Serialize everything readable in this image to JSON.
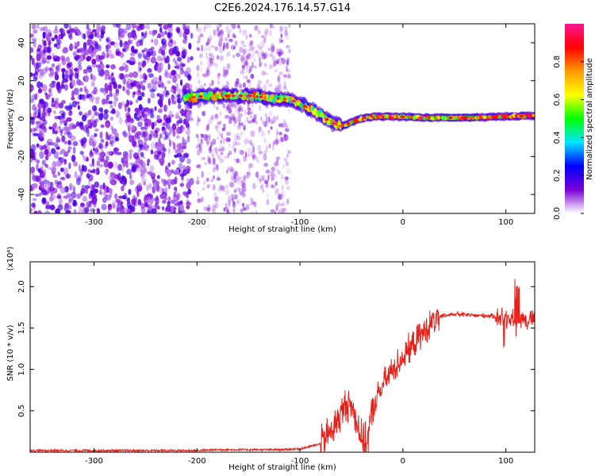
{
  "figure_title": "C2E6.2024.176.14.57.G14",
  "chart_data": [
    {
      "type": "heatmap",
      "title": "C2E6.2024.176.14.57.G14",
      "xlabel": "Height of straight line (km)",
      "ylabel": "Frequency (Hz)",
      "xlim": [
        -362,
        128
      ],
      "ylim": [
        -50,
        50
      ],
      "x_ticks": [
        -300,
        -200,
        -100,
        0,
        100
      ],
      "y_ticks": [
        -40,
        -20,
        0,
        20,
        40
      ],
      "colorbar": {
        "label": "Normalized spectral amplitude",
        "range": [
          0.0,
          1.0
        ],
        "ticks": [
          0.0,
          0.2,
          0.4,
          0.6,
          0.8
        ],
        "colormap": [
          "#ffffff",
          "#7a00d6",
          "#0000ff",
          "#00e5ff",
          "#00ff00",
          "#ffff00",
          "#ff9900",
          "#ff0000",
          "#ff1493"
        ]
      },
      "ridge": {
        "x": [
          -210,
          -190,
          -170,
          -150,
          -130,
          -110,
          -100,
          -90,
          -80,
          -70,
          -60,
          -50,
          -40,
          -30,
          -20,
          -10,
          0,
          20,
          40,
          60,
          80,
          100,
          128
        ],
        "y": [
          11,
          12,
          12,
          12,
          11,
          10,
          8,
          5,
          2,
          -2,
          -4,
          -2,
          0,
          1,
          1,
          1,
          1,
          0.5,
          0.5,
          0.5,
          0.7,
          1.2,
          1.5
        ]
      }
    },
    {
      "type": "line",
      "xlabel": "Height of straight line (km)",
      "ylabel": "SNR (10 * v/v)",
      "scale_label": "(x10⁴)",
      "xlim": [
        -362,
        128
      ],
      "ylim": [
        0,
        2.3
      ],
      "x_ticks": [
        -300,
        -200,
        -100,
        0,
        100
      ],
      "y_ticks": [
        0.5,
        1.0,
        1.5,
        2.0
      ],
      "series": [
        {
          "color": "#e8201a",
          "x": [
            -362,
            -300,
            -250,
            -200,
            -180,
            -150,
            -120,
            -100,
            -80,
            -70,
            -60,
            -55,
            -50,
            -45,
            -40,
            -35,
            -30,
            -20,
            -10,
            0,
            10,
            20,
            30,
            40,
            50,
            60,
            70,
            80,
            90,
            95,
            100,
            105,
            108,
            110,
            112,
            115,
            120,
            128
          ],
          "y": [
            0.02,
            0.02,
            0.02,
            0.02,
            0.03,
            0.03,
            0.03,
            0.04,
            0.1,
            0.25,
            0.45,
            0.6,
            0.55,
            0.4,
            0.15,
            0.1,
            0.5,
            0.8,
            1.0,
            1.15,
            1.3,
            1.45,
            1.58,
            1.65,
            1.67,
            1.66,
            1.65,
            1.65,
            1.64,
            1.63,
            1.62,
            1.63,
            1.6,
            1.4,
            1.55,
            1.62,
            1.6,
            1.61
          ]
        }
      ]
    }
  ]
}
